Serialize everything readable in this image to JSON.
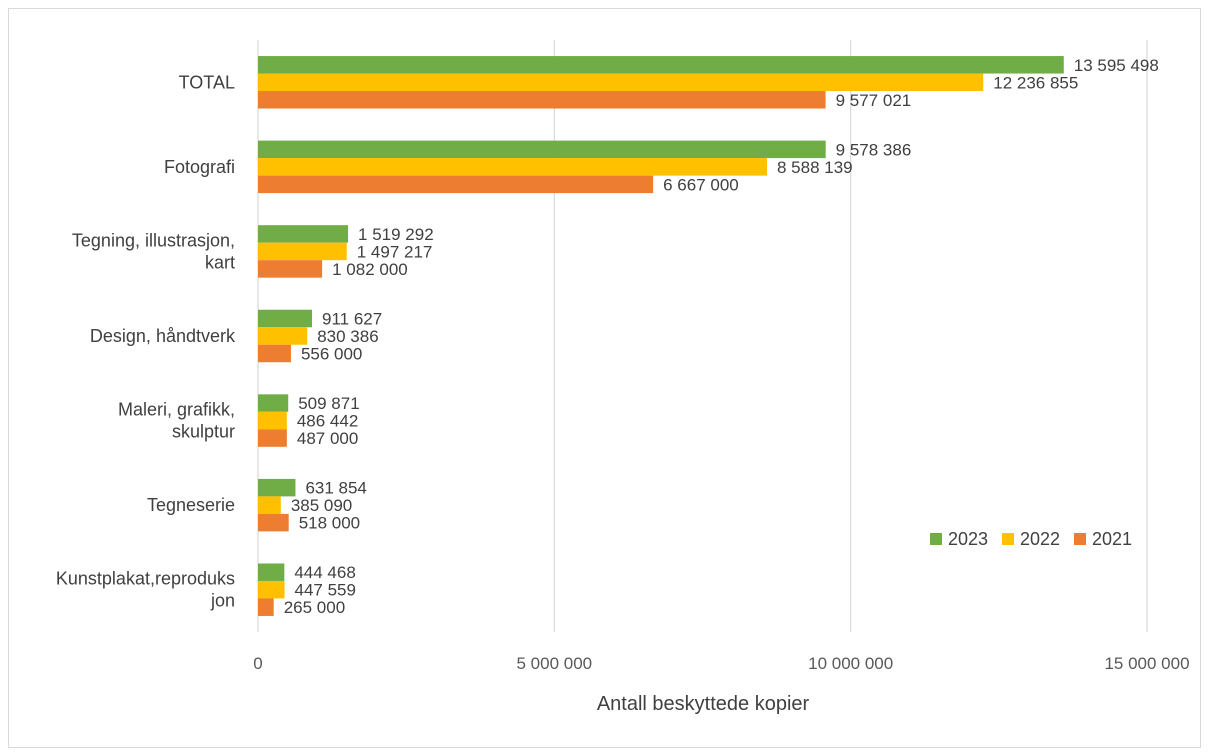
{
  "chart_data": {
    "type": "bar",
    "orientation": "horizontal",
    "categories": [
      [
        "TOTAL"
      ],
      [
        "Fotografi"
      ],
      [
        "Tegning, illustrasjon,",
        "kart"
      ],
      [
        "Design, håndtverk"
      ],
      [
        "Maleri, grafikk,",
        "skulptur"
      ],
      [
        "Tegneserie"
      ],
      [
        "Kunstplakat,reproduks",
        "jon"
      ]
    ],
    "series": [
      {
        "name": "2023",
        "color": "#70ad47",
        "values": [
          13595498,
          9578386,
          1519292,
          911627,
          509871,
          631854,
          444468
        ],
        "labels": [
          "13 595 498",
          "9 578 386",
          "1 519 292",
          "911 627",
          "509 871",
          "631 854",
          "444 468"
        ]
      },
      {
        "name": "2022",
        "color": "#ffc000",
        "values": [
          12236855,
          8588139,
          1497217,
          830386,
          486442,
          385090,
          447559
        ],
        "labels": [
          "12 236 855",
          "8 588 139",
          "1 497 217",
          "830 386",
          "486 442",
          "385 090",
          "447 559"
        ]
      },
      {
        "name": "2021",
        "color": "#ed7d31",
        "values": [
          9577021,
          6667000,
          1082000,
          556000,
          487000,
          518000,
          265000
        ],
        "labels": [
          "9 577 021",
          "6 667 000",
          "1 082 000",
          "556 000",
          "487 000",
          "518 000",
          "265 000"
        ]
      }
    ],
    "xlim": [
      0,
      15000000
    ],
    "xticks": [
      0,
      5000000,
      10000000,
      15000000
    ],
    "xtick_labels": [
      "0",
      "5 000 000",
      "10 000 000",
      "15 000 000"
    ],
    "xlabel": "Antall beskyttede kopier",
    "ylabel": "",
    "title": "",
    "grid": "vertical",
    "legend_position": "bottom-right",
    "legend_order": [
      "2023",
      "2022",
      "2021"
    ]
  }
}
